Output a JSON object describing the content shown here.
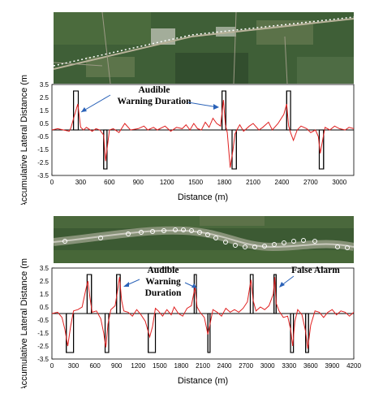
{
  "chart_data": [
    {
      "type": "line",
      "ylabel": "Accumulative Lateral Distance (m)",
      "xlabel": "Distance (m)",
      "xlim": [
        0,
        3150
      ],
      "ylim": [
        -3.5,
        3.5
      ],
      "xticks": [
        0,
        300,
        600,
        900,
        1200,
        1500,
        1800,
        2100,
        2400,
        2700,
        3000
      ],
      "yticks": [
        3.5,
        2.5,
        1.5,
        0.5,
        -0.5,
        -1.5,
        -2.5,
        -3.5
      ],
      "ytick_labels": [
        "3.5",
        "2.5",
        "1.5",
        "0.5",
        "-0.5",
        "-1.5",
        "-2.5",
        "-3.5"
      ],
      "warnings": [
        {
          "start": 225,
          "end": 275,
          "level": 3
        },
        {
          "start": 540,
          "end": 575,
          "level": -3
        },
        {
          "start": 1775,
          "end": 1815,
          "level": 3
        },
        {
          "start": 1880,
          "end": 1925,
          "level": -3
        },
        {
          "start": 2450,
          "end": 2490,
          "level": 3
        },
        {
          "start": 2790,
          "end": 2835,
          "level": -3
        }
      ],
      "series": [
        {
          "color": "#e02020",
          "x": [
            0,
            60,
            120,
            180,
            200,
            230,
            270,
            300,
            330,
            360,
            420,
            460,
            500,
            540,
            560,
            580,
            600,
            640,
            700,
            760,
            820,
            900,
            960,
            1000,
            1060,
            1100,
            1180,
            1240,
            1300,
            1360,
            1400,
            1440,
            1480,
            1520,
            1560,
            1600,
            1640,
            1680,
            1720,
            1760,
            1790,
            1810,
            1830,
            1860,
            1890,
            1910,
            1930,
            1960,
            2000,
            2060,
            2100,
            2160,
            2200,
            2260,
            2300,
            2360,
            2420,
            2450,
            2470,
            2490,
            2520,
            2560,
            2600,
            2660,
            2700,
            2750,
            2780,
            2800,
            2820,
            2850,
            2900,
            2950,
            3000,
            3060,
            3100,
            3150
          ],
          "y": [
            0,
            0.1,
            0,
            -0.1,
            0.2,
            1.0,
            2.0,
            0.2,
            0,
            0.2,
            -0.1,
            0.1,
            0,
            -0.4,
            -2.4,
            -1.2,
            0,
            0.1,
            -0.2,
            0.5,
            0,
            0.1,
            0.3,
            0,
            0.2,
            0,
            0.3,
            -0.1,
            0.2,
            0.1,
            0.4,
            0,
            0.5,
            0.1,
            0,
            0.6,
            0.2,
            0.9,
            0.5,
            0.3,
            2.3,
            0.4,
            -0.2,
            -2.9,
            -1.5,
            -0.3,
            0,
            0.4,
            -0.1,
            0.3,
            0.5,
            0,
            0.2,
            0.6,
            0,
            0.5,
            1.2,
            2.0,
            0.3,
            -0.2,
            -0.8,
            0,
            0.3,
            0.1,
            -0.2,
            0,
            -0.5,
            -1.8,
            -1.0,
            0.2,
            0,
            0.3,
            0.1,
            0,
            0.2,
            0.1
          ]
        }
      ],
      "annotations": [
        "Audible",
        "Warning Duration"
      ]
    },
    {
      "type": "line",
      "ylabel": "Accumulative Lateral Distance (m)",
      "xlabel": "Distance (m)",
      "xlim": [
        0,
        4200
      ],
      "ylim": [
        -3.5,
        3.5
      ],
      "xticks": [
        0,
        300,
        600,
        900,
        1200,
        1500,
        1800,
        2100,
        2400,
        2700,
        3000,
        3300,
        3600,
        3900,
        4200
      ],
      "yticks": [
        3.5,
        2.5,
        1.5,
        0.5,
        -0.5,
        -1.5,
        -2.5,
        -3.5
      ],
      "ytick_labels": [
        "3.5",
        "2.5",
        "1.5",
        "0.5",
        "-0.5",
        "-1.5",
        "-2.5",
        "-3.5"
      ],
      "warnings": [
        {
          "start": 200,
          "end": 300,
          "level": -3
        },
        {
          "start": 490,
          "end": 550,
          "level": 3
        },
        {
          "start": 740,
          "end": 790,
          "level": -3
        },
        {
          "start": 900,
          "end": 950,
          "level": 3
        },
        {
          "start": 1340,
          "end": 1440,
          "level": -3
        },
        {
          "start": 1980,
          "end": 2010,
          "level": 3
        },
        {
          "start": 2170,
          "end": 2200,
          "level": -3
        },
        {
          "start": 2760,
          "end": 2800,
          "level": 3
        },
        {
          "start": 3090,
          "end": 3120,
          "level": 3
        },
        {
          "start": 3320,
          "end": 3360,
          "level": -3
        },
        {
          "start": 3530,
          "end": 3570,
          "level": -3
        }
      ],
      "series": [
        {
          "color": "#e02020",
          "x": [
            0,
            80,
            140,
            180,
            220,
            260,
            300,
            360,
            420,
            470,
            500,
            530,
            560,
            620,
            680,
            720,
            750,
            780,
            820,
            880,
            920,
            940,
            970,
            1000,
            1060,
            1120,
            1180,
            1240,
            1300,
            1360,
            1400,
            1440,
            1480,
            1540,
            1600,
            1660,
            1700,
            1760,
            1820,
            1880,
            1940,
            1990,
            2020,
            2060,
            2120,
            2170,
            2200,
            2240,
            2300,
            2360,
            2420,
            2480,
            2540,
            2600,
            2660,
            2720,
            2770,
            2800,
            2840,
            2900,
            2960,
            3020,
            3080,
            3100,
            3120,
            3160,
            3220,
            3280,
            3320,
            3350,
            3380,
            3420,
            3480,
            3530,
            3560,
            3600,
            3660,
            3720,
            3780,
            3840,
            3900,
            3960,
            4020,
            4080,
            4140,
            4200
          ],
          "y": [
            0,
            0.1,
            -0.3,
            -1.2,
            -2.5,
            -1.0,
            0.2,
            0.3,
            0.5,
            1.8,
            2.5,
            1.2,
            0.1,
            0.2,
            -0.4,
            -1.5,
            -2.6,
            -0.8,
            0.3,
            0.6,
            2.0,
            2.8,
            1.0,
            0.2,
            0.1,
            -0.2,
            0.3,
            -0.1,
            -0.6,
            -1.8,
            -1.0,
            0.4,
            0.2,
            -0.2,
            0.3,
            -0.1,
            0.5,
            0,
            -0.2,
            0.4,
            0.6,
            2.0,
            0.5,
            0.1,
            -0.3,
            -1.6,
            -0.8,
            0.3,
            0.1,
            -0.2,
            0.4,
            0.1,
            0.3,
            0.1,
            0.4,
            0.9,
            2.6,
            1.0,
            0.2,
            0.5,
            0.3,
            0.6,
            1.5,
            2.8,
            0.8,
            0.2,
            -0.3,
            -0.2,
            -1.2,
            -2.5,
            -0.6,
            0.3,
            -0.1,
            -1.4,
            -2.7,
            -0.9,
            0.2,
            0.1,
            -0.3,
            0.1,
            0.3,
            -0.1,
            0.2,
            0.1,
            -0.2,
            0.1
          ]
        }
      ],
      "annotations": [
        "Audible",
        "Warning",
        "Duration",
        "False Alarm"
      ]
    }
  ]
}
